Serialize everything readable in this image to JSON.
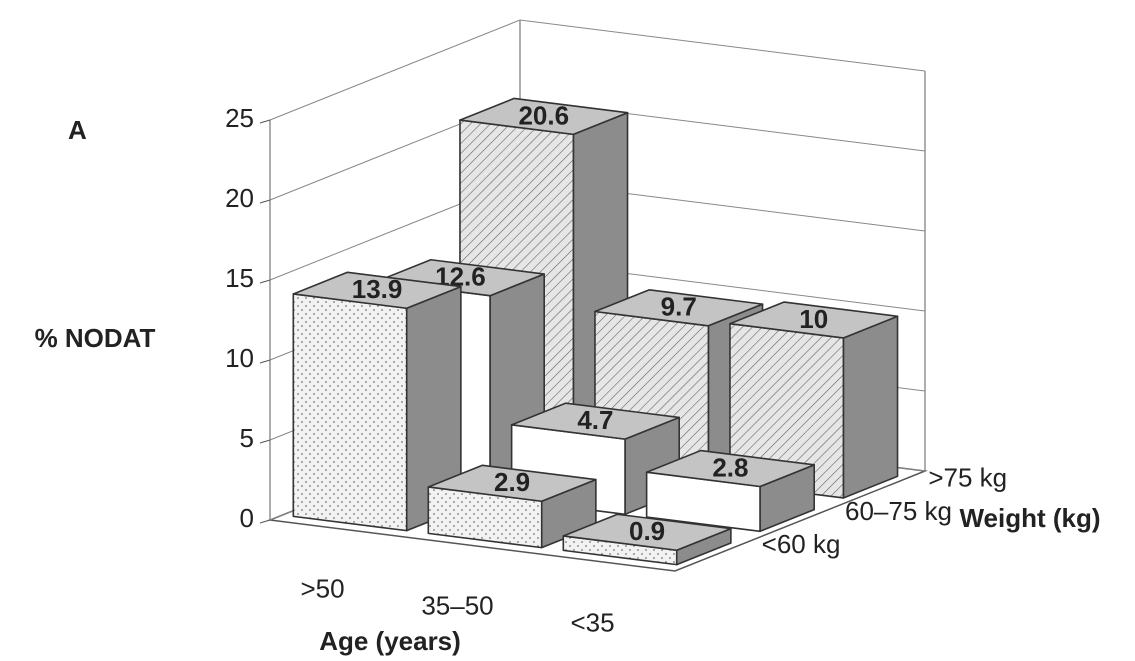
{
  "chart_data": {
    "type": "bar3d",
    "title": "A",
    "ylabel": "% NODAT",
    "xlabel": "Age (years)",
    "zlabel": "Weight (kg)",
    "categories": [
      ">50",
      "35–50",
      "<35"
    ],
    "series": [
      {
        "name": "<60 kg",
        "color": "#f2f2f2",
        "pattern": "dots",
        "values": [
          13.9,
          2.9,
          0.9
        ]
      },
      {
        "name": "60–75 kg",
        "color": "#ffffff",
        "pattern": "none",
        "values": [
          12.6,
          4.7,
          2.8
        ]
      },
      {
        "name": ">75 kg",
        "color": "#d9d9d9",
        "pattern": "hatch",
        "values": [
          20.6,
          9.7,
          10
        ]
      }
    ],
    "ylim": [
      0,
      25
    ],
    "yticks": [
      0,
      5,
      10,
      15,
      20,
      25
    ],
    "grid": true
  }
}
